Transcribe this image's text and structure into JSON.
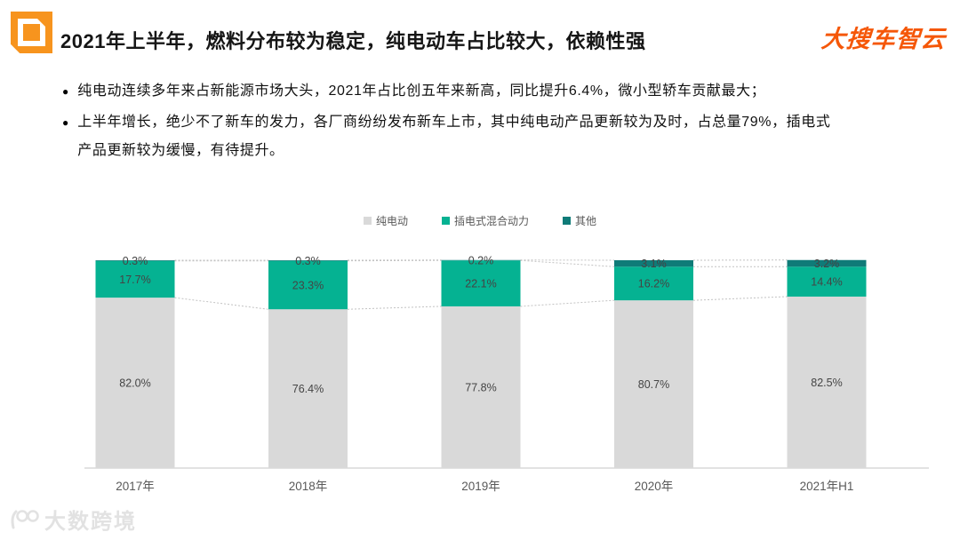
{
  "header": {
    "title": "2021年上半年，燃料分布较为稳定，纯电动车占比较大，依赖性强",
    "brand": "大搜车智云",
    "logo_icon": "dasouche-square-logo-icon",
    "accent_color": "#f7941e",
    "brand_color": "#f55708"
  },
  "bullets": [
    {
      "marker": "●",
      "text": "纯电动连续多年来占新能源市场大头，2021年占比创五年来新高，同比提升6.4%，微小型轿车贡献最大；"
    },
    {
      "marker": "●",
      "text": "上半年增长，绝少不了新车的发力，各厂商纷纷发布新车上市，其中纯电动产品更新较为及时，占总量79%，插电式\n产品更新较为缓慢，有待提升。"
    }
  ],
  "chart_data": {
    "type": "bar",
    "subtype": "stacked-percent-column",
    "categories": [
      "2017年",
      "2018年",
      "2019年",
      "2020年",
      "2021年H1"
    ],
    "series": [
      {
        "name": "纯电动",
        "color": "#d9d9d9",
        "values": [
          82.0,
          76.4,
          77.8,
          80.7,
          82.5
        ]
      },
      {
        "name": "插电式混合动力",
        "color": "#05b292",
        "values": [
          17.7,
          23.3,
          22.1,
          16.2,
          14.4
        ]
      },
      {
        "name": "其他",
        "color": "#0f7b78",
        "values": [
          0.3,
          0.3,
          0.2,
          3.1,
          3.2
        ]
      }
    ],
    "value_suffix": "%",
    "ylim": [
      0,
      100
    ],
    "gridlines": false,
    "legend_position": "top-center",
    "connector_lines": true,
    "label_color": "#444444",
    "axis_label_color": "#595959",
    "axis_line_color": "#d9d9d9",
    "connector_color": "#c2c2c2"
  },
  "watermark": {
    "text": "大数跨境",
    "icon": "hundred-circles-logo-icon"
  }
}
